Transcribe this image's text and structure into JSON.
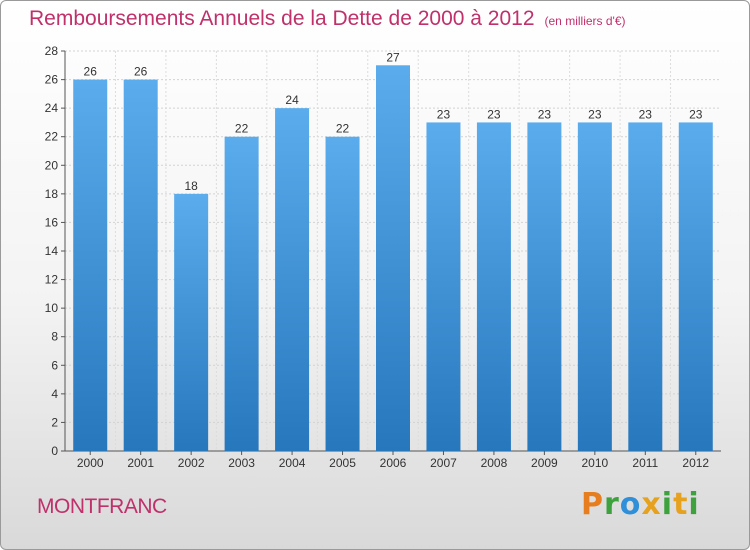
{
  "chart_data": {
    "type": "bar",
    "title": "Remboursements Annuels de la Dette de 2000 à 2012",
    "subtitle": "(en milliers d'€)",
    "categories": [
      "2000",
      "2001",
      "2002",
      "2003",
      "2004",
      "2005",
      "2006",
      "2007",
      "2008",
      "2009",
      "2010",
      "2011",
      "2012"
    ],
    "values": [
      26,
      26,
      18,
      22,
      24,
      22,
      27,
      23,
      23,
      23,
      23,
      23,
      23
    ],
    "ylim": [
      0,
      28
    ],
    "yticks": [
      0,
      2,
      4,
      6,
      8,
      10,
      12,
      14,
      16,
      18,
      20,
      22,
      24,
      26,
      28
    ],
    "grid": true,
    "bar_color": "#3d8fd6"
  },
  "footer": {
    "location": "MONTFRANC",
    "logo": [
      "P",
      "r",
      "o",
      "x",
      "i",
      "t",
      "i"
    ]
  },
  "colors": {
    "accent": "#c0306a",
    "logo": [
      "#e67d1f",
      "#3da23d",
      "#2f8fd8",
      "#e6a21f",
      "#3da23d",
      "#e6a21f",
      "#3da23d"
    ]
  }
}
